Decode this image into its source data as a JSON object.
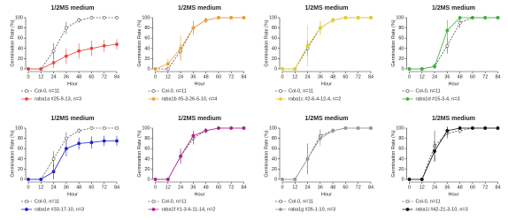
{
  "chart_data": [
    {
      "type": "line",
      "title": "1/2MS medium",
      "xlabel": "Hour",
      "ylabel": "Germination Rate (%)",
      "x": [
        0,
        12,
        24,
        36,
        48,
        60,
        72,
        84
      ],
      "xlim": [
        0,
        84
      ],
      "xticks": [
        0,
        12,
        24,
        36,
        48,
        60,
        72,
        84
      ],
      "ylim": [
        0,
        100
      ],
      "yticks": [
        0,
        20,
        40,
        60,
        80,
        100
      ],
      "series": [
        {
          "name": "Col-0, n=11",
          "color": "#555555",
          "dashed": true,
          "values": [
            0,
            0,
            35,
            80,
            95,
            100,
            100,
            100
          ],
          "errors": [
            0,
            0,
            15,
            12,
            5,
            0,
            0,
            0
          ]
        },
        {
          "name": "raba1a #25-9-13, n=3",
          "color": "#e8463c",
          "values": [
            0,
            0,
            12,
            25,
            35,
            40,
            45,
            48
          ],
          "errors": [
            0,
            0,
            10,
            15,
            15,
            15,
            12,
            10
          ]
        }
      ]
    },
    {
      "type": "line",
      "title": "1/2MS medium",
      "xlabel": "Hour",
      "ylabel": "Germination Rate (%)",
      "x": [
        0,
        12,
        24,
        36,
        48,
        60,
        72,
        84
      ],
      "xlim": [
        0,
        84
      ],
      "xticks": [
        0,
        12,
        24,
        36,
        48,
        60,
        72,
        84
      ],
      "ylim": [
        0,
        100
      ],
      "yticks": [
        0,
        20,
        40,
        60,
        80,
        100
      ],
      "series": [
        {
          "name": "Col-0, n=11",
          "color": "#555555",
          "dashed": true,
          "values": [
            0,
            0,
            35,
            80,
            95,
            100,
            100,
            100
          ],
          "errors": [
            0,
            0,
            15,
            12,
            5,
            0,
            0,
            0
          ]
        },
        {
          "name": "raba1b #5-3-26-5-10, n=4",
          "color": "#f0a030",
          "values": [
            0,
            10,
            40,
            80,
            95,
            100,
            100,
            100
          ],
          "errors": [
            0,
            10,
            25,
            15,
            5,
            0,
            0,
            0
          ]
        }
      ]
    },
    {
      "type": "line",
      "title": "1/2MS medium",
      "xlabel": "Hour",
      "ylabel": "Germination Rate (%)",
      "x": [
        0,
        12,
        24,
        36,
        48,
        60,
        72,
        84
      ],
      "xlim": [
        0,
        84
      ],
      "xticks": [
        0,
        12,
        24,
        36,
        48,
        60,
        72,
        84
      ],
      "ylim": [
        0,
        100
      ],
      "yticks": [
        0,
        20,
        40,
        60,
        80,
        100
      ],
      "series": [
        {
          "name": "Col-0, n=11",
          "color": "#555555",
          "dashed": true,
          "values": [
            0,
            0,
            40,
            80,
            95,
            100,
            100,
            100
          ],
          "errors": [
            0,
            0,
            15,
            12,
            5,
            0,
            0,
            0
          ]
        },
        {
          "name": "raba1c #2-6-4-12-4, n=2",
          "color": "#e8d020",
          "values": [
            0,
            0,
            45,
            80,
            95,
            100,
            100,
            100
          ],
          "errors": [
            0,
            0,
            40,
            15,
            5,
            0,
            0,
            0
          ]
        }
      ]
    },
    {
      "type": "line",
      "title": "1/2MS medium",
      "xlabel": "Hour",
      "ylabel": "Germination Rate (%)",
      "x": [
        0,
        12,
        24,
        36,
        48,
        60,
        72,
        84
      ],
      "xlim": [
        0,
        84
      ],
      "xticks": [
        0,
        12,
        24,
        36,
        48,
        60,
        72,
        84
      ],
      "ylim": [
        0,
        100
      ],
      "yticks": [
        0,
        20,
        40,
        60,
        80,
        100
      ],
      "series": [
        {
          "name": "Col-0, n=11",
          "color": "#555555",
          "dashed": true,
          "values": [
            0,
            0,
            5,
            45,
            90,
            100,
            100,
            100
          ],
          "errors": [
            0,
            0,
            5,
            15,
            10,
            0,
            0,
            0
          ]
        },
        {
          "name": "raba1d #15-3-4, n=3",
          "color": "#3cb034",
          "values": [
            0,
            0,
            5,
            75,
            100,
            100,
            100,
            100
          ],
          "errors": [
            0,
            0,
            5,
            20,
            0,
            0,
            0,
            0
          ]
        }
      ]
    },
    {
      "type": "line",
      "title": "1/2MS medium",
      "xlabel": "Hour",
      "ylabel": "Germination Rate (%)",
      "x": [
        0,
        12,
        24,
        36,
        48,
        60,
        72,
        84
      ],
      "xlim": [
        0,
        84
      ],
      "xticks": [
        0,
        12,
        24,
        36,
        48,
        60,
        72,
        84
      ],
      "ylim": [
        0,
        100
      ],
      "yticks": [
        0,
        20,
        40,
        60,
        80,
        100
      ],
      "series": [
        {
          "name": "Col-0, n=11",
          "color": "#555555",
          "dashed": true,
          "values": [
            0,
            0,
            40,
            80,
            95,
            100,
            100,
            100
          ],
          "errors": [
            0,
            0,
            15,
            12,
            5,
            0,
            0,
            0
          ]
        },
        {
          "name": "raba1e #33-17-10, n=3",
          "color": "#2020d0",
          "values": [
            0,
            0,
            15,
            60,
            70,
            72,
            75,
            75
          ],
          "errors": [
            0,
            0,
            15,
            15,
            12,
            12,
            10,
            10
          ]
        }
      ]
    },
    {
      "type": "line",
      "title": "1/2MS medium",
      "xlabel": "Hour",
      "ylabel": "Germination Rate (%)",
      "x": [
        0,
        12,
        24,
        36,
        48,
        60,
        72,
        84
      ],
      "xlim": [
        0,
        84
      ],
      "xticks": [
        0,
        12,
        24,
        36,
        48,
        60,
        72,
        84
      ],
      "ylim": [
        0,
        100
      ],
      "yticks": [
        0,
        20,
        40,
        60,
        80,
        100
      ],
      "series": [
        {
          "name": "Col-0, n=11",
          "color": "#555555",
          "dashed": true,
          "values": [
            0,
            0,
            45,
            80,
            95,
            100,
            100,
            100
          ],
          "errors": [
            0,
            0,
            15,
            12,
            5,
            0,
            0,
            0
          ]
        },
        {
          "name": "raba1f #1-3-6-11-14, n=2",
          "color": "#b02090",
          "values": [
            0,
            0,
            45,
            85,
            95,
            100,
            100,
            100
          ],
          "errors": [
            0,
            0,
            10,
            10,
            5,
            0,
            0,
            0
          ]
        }
      ]
    },
    {
      "type": "line",
      "title": "1/2MS medium",
      "xlabel": "Hour",
      "ylabel": "Germination Rate (%)",
      "x": [
        0,
        12,
        24,
        36,
        48,
        60,
        72,
        84
      ],
      "xlim": [
        0,
        84
      ],
      "xticks": [
        0,
        12,
        24,
        36,
        48,
        60,
        72,
        84
      ],
      "ylim": [
        0,
        100
      ],
      "yticks": [
        0,
        20,
        40,
        60,
        80,
        100
      ],
      "series": [
        {
          "name": "Col-0, n=11",
          "color": "#555555",
          "dashed": true,
          "values": [
            0,
            0,
            40,
            85,
            95,
            100,
            100,
            100
          ],
          "errors": [
            0,
            0,
            30,
            12,
            5,
            0,
            0,
            0
          ]
        },
        {
          "name": "raba1g #26-1-10, n=3",
          "color": "#999999",
          "values": [
            0,
            0,
            40,
            80,
            95,
            100,
            100,
            100
          ],
          "errors": [
            0,
            0,
            20,
            15,
            5,
            0,
            0,
            0
          ]
        }
      ]
    },
    {
      "type": "line",
      "title": "1/2MS medium",
      "xlabel": "Hour",
      "ylabel": "Germination Rate (%)",
      "x": [
        0,
        12,
        24,
        36,
        48,
        60,
        72,
        84
      ],
      "xlim": [
        0,
        84
      ],
      "xticks": [
        0,
        12,
        24,
        36,
        48,
        60,
        72,
        84
      ],
      "ylim": [
        0,
        100
      ],
      "yticks": [
        0,
        20,
        40,
        60,
        80,
        100
      ],
      "series": [
        {
          "name": "Col-0, n=11",
          "color": "#555555",
          "dashed": true,
          "values": [
            0,
            0,
            65,
            90,
            95,
            100,
            100,
            100
          ],
          "errors": [
            0,
            0,
            30,
            10,
            5,
            0,
            0,
            0
          ]
        },
        {
          "name": "raba1i #42-21-3-10, n=3",
          "color": "#111111",
          "values": [
            0,
            0,
            55,
            95,
            100,
            100,
            100,
            100
          ],
          "errors": [
            0,
            0,
            20,
            8,
            0,
            0,
            0,
            0
          ]
        }
      ]
    }
  ]
}
